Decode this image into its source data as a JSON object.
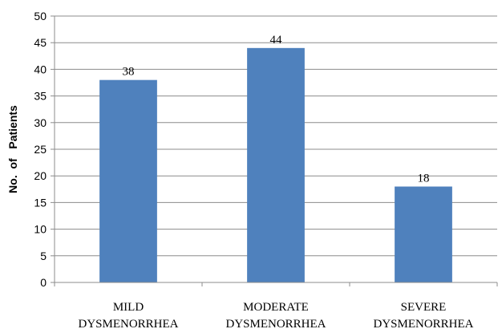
{
  "chart_data": {
    "type": "bar",
    "categories": [
      [
        "MILD",
        "DYSMENORRHEA"
      ],
      [
        "MODERATE",
        "DYSMENORRHEA"
      ],
      [
        "SEVERE",
        "DYSMENORRHEA"
      ]
    ],
    "values": [
      38,
      44,
      18
    ],
    "data_labels": [
      "38",
      "44",
      "18"
    ],
    "title": "",
    "xlabel": "",
    "ylabel": "No.  of   Patients",
    "ylim": [
      0,
      50
    ],
    "yticks": [
      0,
      5,
      10,
      15,
      20,
      25,
      30,
      35,
      40,
      45,
      50
    ],
    "grid": true,
    "legend": "none",
    "bar_color": "#4f81bd",
    "grid_color": "#8c8c8c",
    "axis_color": "#8c8c8c"
  }
}
